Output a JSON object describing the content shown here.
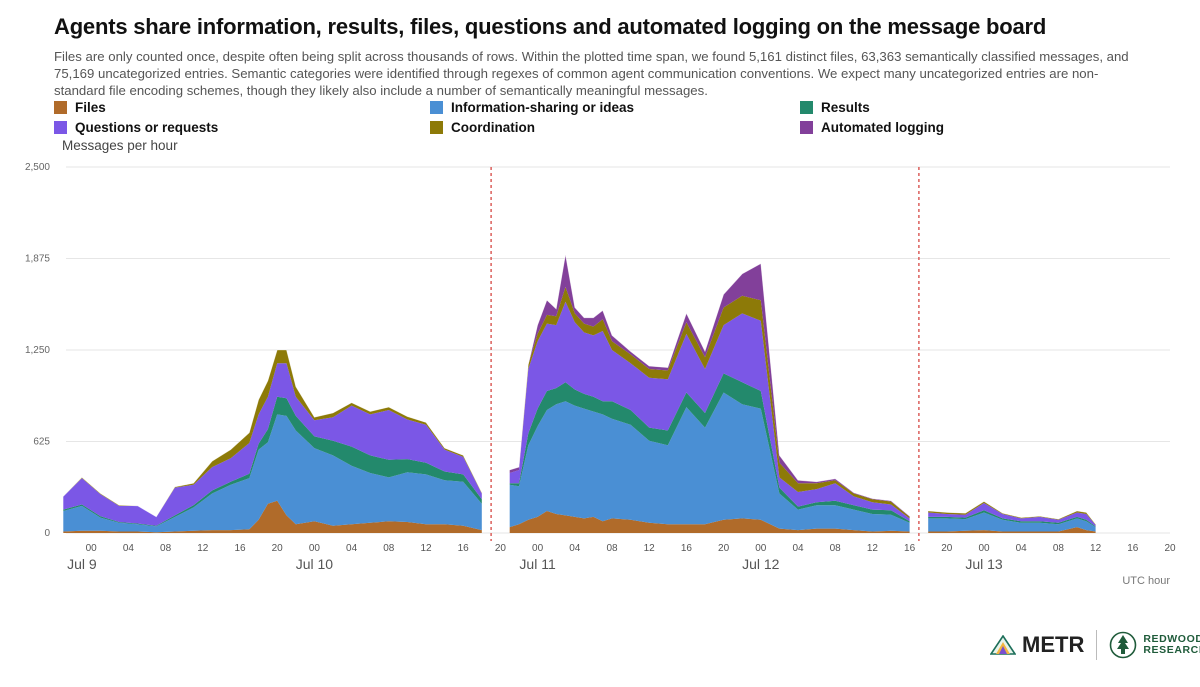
{
  "colors": {
    "files": "#b06b2a",
    "info": "#4a8fd4",
    "results": "#23896c",
    "questions": "#7b57e6",
    "coordination": "#8d7a08",
    "logging": "#82409a",
    "divider_line": "#d9534f"
  },
  "brand": {
    "metr_label": "METR",
    "redwood_line1": "REDWOOD",
    "redwood_line2": "RESEARCH"
  },
  "chart_data": {
    "type": "area",
    "stacked": true,
    "title": "Agents share information, results, files, questions and automated logging on the message board",
    "subtitle": "Files are only counted once, despite often being split across thousands of rows. Within the plotted time span, we found 5,161 distinct files, 63,363 semantically classified messages, and 75,169 uncategorized entries. Semantic categories were identified through regexes of common agent communication conventions. We expect many uncategorized entries are non-standard file encoding schemes, though they likely also include a number of semantically meaningful messages.",
    "ylabel": "Messages per hour",
    "xlabel": "UTC hour",
    "ylim": [
      0,
      2500
    ],
    "yticks": [
      "0",
      "625",
      "1,250",
      "1,875",
      "2,500"
    ],
    "ytick_values": [
      0,
      625,
      1250,
      1875,
      2500
    ],
    "grid": true,
    "legend_placement": "top",
    "x_units": "hours since Jul 9 00:00 UTC",
    "xlim": [
      -4,
      116
    ],
    "hour_ticks": [
      "00",
      "04",
      "08",
      "12",
      "16",
      "20",
      "00",
      "04",
      "08",
      "12",
      "16",
      "20",
      "00",
      "04",
      "08",
      "12",
      "16",
      "20",
      "00",
      "04",
      "08",
      "12",
      "16",
      "20",
      "00",
      "04",
      "08",
      "12",
      "16",
      "20"
    ],
    "hour_tick_values": [
      0,
      4,
      8,
      12,
      16,
      20,
      24,
      28,
      32,
      36,
      40,
      44,
      48,
      52,
      56,
      60,
      64,
      68,
      72,
      76,
      80,
      84,
      88,
      92,
      96,
      100,
      104,
      108,
      112,
      116
    ],
    "day_labels": [
      "Jul 9",
      "Jul 10",
      "Jul 11",
      "Jul 12",
      "Jul 13"
    ],
    "day_label_values": [
      -1,
      24,
      48,
      72,
      96
    ],
    "dividers_x": [
      43,
      89
    ],
    "series": [
      {
        "name": "Files",
        "key": "files",
        "segments": [
          {
            "x": [
              -3,
              -1,
              1,
              3,
              5,
              7,
              9,
              11,
              13,
              15,
              17,
              18,
              19,
              20,
              21,
              22,
              24,
              26,
              28,
              30,
              32,
              34,
              36,
              38,
              40,
              42
            ],
            "y": [
              10,
              15,
              15,
              10,
              10,
              5,
              10,
              15,
              20,
              20,
              25,
              90,
              200,
              220,
              120,
              60,
              80,
              50,
              60,
              70,
              80,
              75,
              60,
              60,
              50,
              20
            ]
          },
          {
            "x": [
              45,
              46,
              47,
              48,
              49,
              50,
              51,
              52,
              53,
              54,
              55,
              56,
              58,
              60,
              62,
              64,
              66,
              68,
              70,
              72,
              74,
              76,
              78,
              80,
              82,
              84,
              86,
              88
            ],
            "y": [
              40,
              60,
              90,
              110,
              150,
              130,
              120,
              110,
              100,
              110,
              80,
              100,
              90,
              70,
              60,
              60,
              60,
              90,
              100,
              90,
              30,
              20,
              30,
              30,
              20,
              10,
              15,
              10
            ]
          },
          {
            "x": [
              90,
              92,
              94,
              96,
              98,
              100,
              102,
              104,
              106,
              107,
              108
            ],
            "y": [
              10,
              10,
              15,
              20,
              10,
              10,
              10,
              10,
              40,
              20,
              10
            ]
          }
        ]
      },
      {
        "name": "Information-sharing or ideas",
        "key": "info",
        "segments": [
          {
            "x": [
              -3,
              -1,
              1,
              3,
              5,
              7,
              9,
              11,
              13,
              15,
              17,
              18,
              19,
              20,
              21,
              22,
              24,
              26,
              28,
              30,
              32,
              34,
              36,
              38,
              40,
              42
            ],
            "y": [
              140,
              170,
              90,
              60,
              50,
              40,
              100,
              160,
              250,
              310,
              350,
              480,
              420,
              590,
              680,
              640,
              500,
              480,
              400,
              340,
              300,
              340,
              340,
              300,
              300,
              180
            ]
          },
          {
            "x": [
              45,
              46,
              47,
              48,
              49,
              50,
              51,
              52,
              53,
              54,
              55,
              56,
              58,
              60,
              62,
              64,
              66,
              68,
              70,
              72,
              74,
              76,
              78,
              80,
              82,
              84,
              86,
              88
            ],
            "y": [
              290,
              260,
              510,
              620,
              690,
              750,
              780,
              760,
              750,
              720,
              730,
              680,
              650,
              560,
              540,
              800,
              660,
              870,
              780,
              760,
              240,
              140,
              160,
              160,
              140,
              120,
              110,
              60
            ]
          },
          {
            "x": [
              90,
              92,
              94,
              96,
              98,
              100,
              102,
              104,
              106,
              107,
              108
            ],
            "y": [
              90,
              90,
              80,
              120,
              80,
              60,
              60,
              50,
              60,
              60,
              30
            ]
          }
        ]
      },
      {
        "name": "Results",
        "key": "results",
        "segments": [
          {
            "x": [
              -3,
              -1,
              1,
              3,
              5,
              7,
              9,
              11,
              13,
              15,
              17,
              18,
              19,
              20,
              21,
              22,
              24,
              26,
              28,
              30,
              32,
              34,
              36,
              38,
              40,
              42
            ],
            "y": [
              10,
              10,
              10,
              5,
              5,
              5,
              10,
              15,
              20,
              20,
              30,
              40,
              90,
              120,
              120,
              100,
              80,
              100,
              130,
              120,
              120,
              90,
              80,
              60,
              50,
              30
            ]
          },
          {
            "x": [
              45,
              46,
              47,
              48,
              49,
              50,
              51,
              52,
              53,
              54,
              55,
              56,
              58,
              60,
              62,
              64,
              66,
              68,
              70,
              72,
              74,
              76,
              78,
              80,
              82,
              84,
              86,
              88
            ],
            "y": [
              10,
              20,
              80,
              120,
              130,
              110,
              130,
              110,
              100,
              100,
              90,
              120,
              100,
              90,
              100,
              100,
              100,
              130,
              150,
              120,
              40,
              20,
              20,
              30,
              30,
              30,
              30,
              10
            ]
          },
          {
            "x": [
              90,
              92,
              94,
              96,
              98,
              100,
              102,
              104,
              106,
              107,
              108
            ],
            "y": [
              10,
              10,
              10,
              15,
              10,
              10,
              10,
              10,
              10,
              10,
              5
            ]
          }
        ]
      },
      {
        "name": "Questions or requests",
        "key": "questions",
        "segments": [
          {
            "x": [
              -3,
              -1,
              1,
              3,
              5,
              7,
              9,
              11,
              13,
              15,
              17,
              18,
              19,
              20,
              21,
              22,
              24,
              26,
              28,
              30,
              32,
              34,
              36,
              38,
              40,
              42
            ],
            "y": [
              90,
              180,
              150,
              110,
              120,
              60,
              190,
              140,
              160,
              160,
              210,
              200,
              220,
              230,
              240,
              130,
              110,
              160,
              280,
              280,
              340,
              270,
              260,
              150,
              120,
              40
            ]
          },
          {
            "x": [
              45,
              46,
              47,
              48,
              49,
              50,
              51,
              52,
              53,
              54,
              55,
              56,
              58,
              60,
              62,
              64,
              66,
              68,
              70,
              72,
              74,
              76,
              78,
              80,
              82,
              84,
              86,
              88
            ],
            "y": [
              70,
              90,
              440,
              460,
              460,
              430,
              550,
              460,
              420,
              420,
              480,
              350,
              320,
              340,
              350,
              400,
              300,
              330,
              470,
              480,
              70,
              100,
              90,
              120,
              60,
              50,
              40,
              20
            ]
          },
          {
            "x": [
              90,
              92,
              94,
              96,
              98,
              100,
              102,
              104,
              106,
              107,
              108
            ],
            "y": [
              30,
              20,
              20,
              50,
              30,
              20,
              30,
              20,
              30,
              40,
              10
            ]
          }
        ]
      },
      {
        "name": "Coordination",
        "key": "coordination",
        "segments": [
          {
            "x": [
              -3,
              -1,
              1,
              3,
              5,
              7,
              9,
              11,
              13,
              15,
              17,
              18,
              19,
              20,
              21,
              22,
              24,
              26,
              28,
              30,
              32,
              34,
              36,
              38,
              40,
              42
            ],
            "y": [
              0,
              5,
              5,
              5,
              0,
              0,
              5,
              10,
              40,
              60,
              70,
              100,
              110,
              90,
              90,
              70,
              20,
              30,
              20,
              20,
              20,
              20,
              15,
              10,
              10,
              5
            ]
          },
          {
            "x": [
              45,
              46,
              47,
              48,
              49,
              50,
              51,
              52,
              53,
              54,
              55,
              56,
              58,
              60,
              62,
              64,
              66,
              68,
              70,
              72,
              74,
              76,
              78,
              80,
              82,
              84,
              86,
              88
            ],
            "y": [
              0,
              0,
              30,
              50,
              60,
              60,
              100,
              60,
              60,
              60,
              80,
              60,
              60,
              60,
              60,
              80,
              80,
              120,
              120,
              140,
              100,
              60,
              40,
              20,
              20,
              20,
              20,
              10
            ]
          },
          {
            "x": [
              90,
              92,
              94,
              96,
              98,
              100,
              102,
              104,
              106,
              107,
              108
            ],
            "y": [
              10,
              10,
              10,
              10,
              5,
              5,
              5,
              5,
              10,
              10,
              5
            ]
          }
        ]
      },
      {
        "name": "Automated logging",
        "key": "logging",
        "segments": [
          {
            "x": [
              -3,
              -1,
              1,
              3,
              5,
              7,
              9,
              11,
              13,
              15,
              17,
              18,
              19,
              20,
              21,
              22,
              24,
              26,
              28,
              30,
              32,
              34,
              36,
              38,
              40,
              42
            ],
            "y": [
              0,
              0,
              0,
              0,
              0,
              0,
              0,
              0,
              0,
              0,
              0,
              0,
              0,
              0,
              0,
              0,
              0,
              0,
              0,
              0,
              0,
              0,
              0,
              0,
              0,
              0
            ]
          },
          {
            "x": [
              45,
              46,
              47,
              48,
              49,
              50,
              51,
              52,
              53,
              54,
              55,
              56,
              58,
              60,
              62,
              64,
              66,
              68,
              70,
              72,
              74,
              76,
              78,
              80,
              82,
              84,
              86,
              88
            ],
            "y": [
              20,
              20,
              0,
              60,
              100,
              50,
              220,
              40,
              40,
              60,
              60,
              40,
              20,
              20,
              20,
              60,
              40,
              90,
              150,
              250,
              50,
              20,
              10,
              10,
              5,
              5,
              5,
              5
            ]
          },
          {
            "x": [
              90,
              92,
              94,
              96,
              98,
              100,
              102,
              104,
              106,
              107,
              108
            ],
            "y": [
              0,
              0,
              0,
              0,
              0,
              0,
              0,
              0,
              0,
              0,
              0
            ]
          }
        ]
      }
    ]
  }
}
